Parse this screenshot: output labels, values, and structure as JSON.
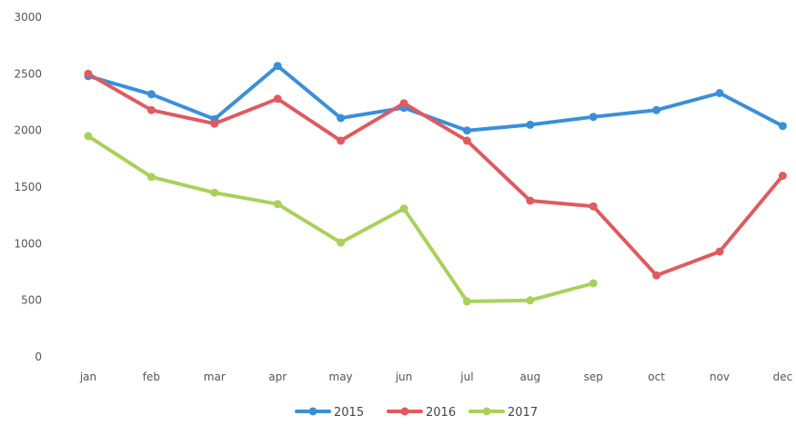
{
  "chart_data": {
    "type": "line",
    "title": "",
    "xlabel": "",
    "ylabel": "",
    "categories": [
      "jan",
      "feb",
      "mar",
      "apr",
      "may",
      "jun",
      "jul",
      "aug",
      "sep",
      "oct",
      "nov",
      "dec"
    ],
    "y_ticks": [
      "0",
      "500",
      "1000",
      "1500",
      "2000",
      "2500",
      "3000"
    ],
    "ylim": [
      0,
      3000
    ],
    "grid": false,
    "legend_position": "bottom",
    "series": [
      {
        "name": "2015",
        "color": "#3a8fd9",
        "values": [
          2480,
          2320,
          2100,
          2570,
          2110,
          2200,
          2000,
          2050,
          2120,
          2180,
          2330,
          2040
        ]
      },
      {
        "name": "2016",
        "color": "#e05a60",
        "values": [
          2500,
          2180,
          2060,
          2280,
          1910,
          2240,
          1910,
          1380,
          1330,
          720,
          930,
          1600
        ]
      },
      {
        "name": "2017",
        "color": "#a9d15a",
        "values": [
          1950,
          1590,
          1450,
          1350,
          1010,
          1310,
          490,
          500,
          650,
          null,
          null,
          null
        ]
      }
    ]
  }
}
